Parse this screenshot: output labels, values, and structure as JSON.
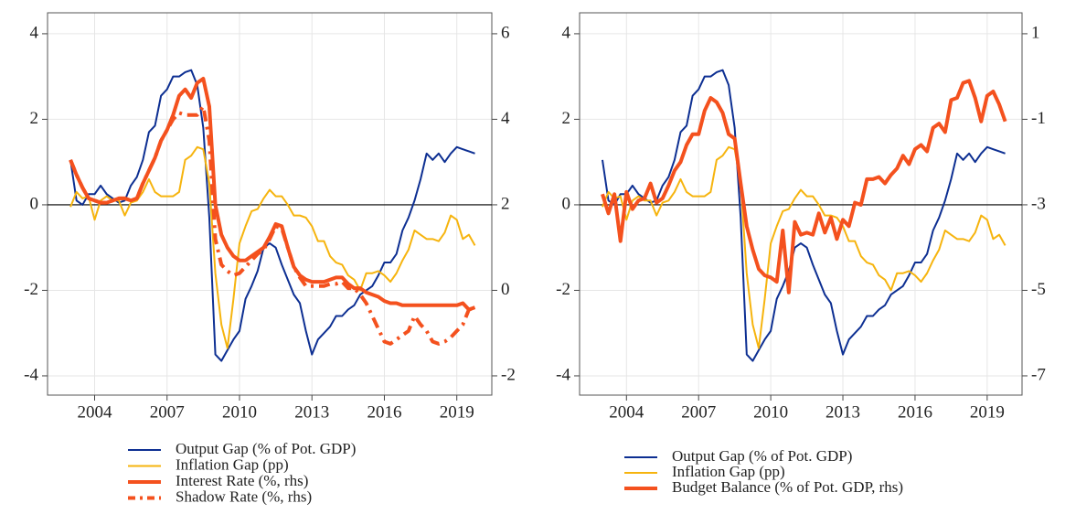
{
  "chart_data": [
    {
      "type": "line",
      "x": [
        2003,
        2003.25,
        2003.5,
        2003.75,
        2004,
        2004.25,
        2004.5,
        2004.75,
        2005,
        2005.25,
        2005.5,
        2005.75,
        2006,
        2006.25,
        2006.5,
        2006.75,
        2007,
        2007.25,
        2007.5,
        2007.75,
        2008,
        2008.25,
        2008.5,
        2008.75,
        2009,
        2009.25,
        2009.5,
        2009.75,
        2010,
        2010.25,
        2010.5,
        2010.75,
        2011,
        2011.25,
        2011.5,
        2011.75,
        2012,
        2012.25,
        2012.5,
        2012.75,
        2013,
        2013.25,
        2013.5,
        2013.75,
        2014,
        2014.25,
        2014.5,
        2014.75,
        2015,
        2015.25,
        2015.5,
        2015.75,
        2016,
        2016.25,
        2016.5,
        2016.75,
        2017,
        2017.25,
        2017.5,
        2017.75,
        2018,
        2018.25,
        2018.5,
        2018.75,
        2019,
        2019.25,
        2019.5,
        2019.75
      ],
      "xlim": [
        2002.05,
        2020.45
      ],
      "xticks": [
        2004,
        2007,
        2010,
        2013,
        2016,
        2019
      ],
      "ylim": [
        -4.45,
        4.49
      ],
      "yticks": [
        -4,
        -2,
        0,
        2,
        4
      ],
      "y2lim": [
        -2.45,
        6.49
      ],
      "y2ticks": [
        -2,
        0,
        2,
        4,
        6
      ],
      "hline": 0,
      "grid": true,
      "series": [
        {
          "name": "Output Gap (% of Pot. GDP)",
          "color": "#0d2f92",
          "line_width": 2,
          "style": "solid",
          "values": [
            1.05,
            0.1,
            0.0,
            0.25,
            0.25,
            0.45,
            0.25,
            0.15,
            0.05,
            0.1,
            0.45,
            0.65,
            1.05,
            1.7,
            1.85,
            2.55,
            2.7,
            3.0,
            3.0,
            3.1,
            3.15,
            2.8,
            1.8,
            -0.3,
            -3.5,
            -3.65,
            -3.4,
            -3.15,
            -2.95,
            -2.2,
            -1.9,
            -1.55,
            -1.0,
            -0.9,
            -1.0,
            -1.4,
            -1.75,
            -2.1,
            -2.3,
            -2.95,
            -3.5,
            -3.15,
            -3.0,
            -2.85,
            -2.6,
            -2.6,
            -2.45,
            -2.35,
            -2.1,
            -2.0,
            -1.9,
            -1.65,
            -1.35,
            -1.35,
            -1.15,
            -0.6,
            -0.3,
            0.1,
            0.6,
            1.2,
            1.05,
            1.2,
            1.0,
            1.2,
            1.35,
            1.3,
            1.25,
            1.2
          ]
        },
        {
          "name": "Inflation Gap (pp)",
          "color": "#f6b40e",
          "line_width": 2,
          "style": "solid",
          "values": [
            -0.05,
            0.3,
            0.15,
            0.2,
            -0.35,
            0.1,
            0.2,
            0.1,
            0.1,
            -0.25,
            0.05,
            0.1,
            0.3,
            0.6,
            0.3,
            0.2,
            0.2,
            0.2,
            0.3,
            1.05,
            1.15,
            1.35,
            1.3,
            0.5,
            -1.6,
            -2.8,
            -3.35,
            -2.2,
            -0.9,
            -0.5,
            -0.15,
            -0.1,
            0.15,
            0.35,
            0.2,
            0.2,
            0.0,
            -0.25,
            -0.25,
            -0.3,
            -0.5,
            -0.85,
            -0.85,
            -1.2,
            -1.35,
            -1.4,
            -1.65,
            -1.75,
            -2.0,
            -1.6,
            -1.6,
            -1.55,
            -1.65,
            -1.8,
            -1.6,
            -1.3,
            -1.05,
            -0.6,
            -0.7,
            -0.8,
            -0.8,
            -0.85,
            -0.65,
            -0.25,
            -0.35,
            -0.8,
            -0.7,
            -0.95
          ]
        },
        {
          "name": "Interest Rate (%, rhs)",
          "color": "#f4511e",
          "line_width": 4,
          "style": "solid",
          "axis": "y2",
          "values": [
            3.05,
            2.7,
            2.4,
            2.15,
            2.1,
            2.05,
            2.05,
            2.1,
            2.15,
            2.15,
            2.1,
            2.15,
            2.5,
            2.8,
            3.1,
            3.5,
            3.75,
            4.1,
            4.55,
            4.7,
            4.5,
            4.85,
            4.95,
            4.3,
            2.0,
            1.3,
            1.0,
            0.8,
            0.7,
            0.7,
            0.8,
            0.9,
            1.0,
            1.25,
            1.55,
            1.5,
            1.0,
            0.55,
            0.35,
            0.25,
            0.2,
            0.2,
            0.2,
            0.25,
            0.3,
            0.3,
            0.15,
            0.05,
            0.05,
            -0.05,
            -0.1,
            -0.15,
            -0.25,
            -0.3,
            -0.3,
            -0.35,
            -0.35,
            -0.35,
            -0.35,
            -0.35,
            -0.35,
            -0.35,
            -0.35,
            -0.35,
            -0.35,
            -0.3,
            -0.45,
            -0.4
          ]
        },
        {
          "name": "Shadow Rate (%, rhs)",
          "color": "#f4511e",
          "line_width": 4,
          "style": "dashdot",
          "axis": "y2",
          "values": [
            3.05,
            2.7,
            2.4,
            2.15,
            2.1,
            2.05,
            2.05,
            2.1,
            2.15,
            2.15,
            2.1,
            2.15,
            2.5,
            2.8,
            3.1,
            3.5,
            3.75,
            4.0,
            4.15,
            4.1,
            4.1,
            4.1,
            4.3,
            3.5,
            1.2,
            0.6,
            0.45,
            0.35,
            0.4,
            0.55,
            0.7,
            0.85,
            0.95,
            1.2,
            1.5,
            1.45,
            1.0,
            0.55,
            0.3,
            0.1,
            0.1,
            0.1,
            0.1,
            0.15,
            0.15,
            0.2,
            0.05,
            0.05,
            -0.1,
            -0.3,
            -0.6,
            -0.9,
            -1.2,
            -1.25,
            -1.15,
            -1.05,
            -0.95,
            -0.6,
            -0.8,
            -0.95,
            -1.2,
            -1.25,
            -1.2,
            -1.1,
            -0.95,
            -0.8,
            -0.45,
            -0.4
          ]
        }
      ]
    },
    {
      "type": "line",
      "x": [
        2003,
        2003.25,
        2003.5,
        2003.75,
        2004,
        2004.25,
        2004.5,
        2004.75,
        2005,
        2005.25,
        2005.5,
        2005.75,
        2006,
        2006.25,
        2006.5,
        2006.75,
        2007,
        2007.25,
        2007.5,
        2007.75,
        2008,
        2008.25,
        2008.5,
        2008.75,
        2009,
        2009.25,
        2009.5,
        2009.75,
        2010,
        2010.25,
        2010.5,
        2010.75,
        2011,
        2011.25,
        2011.5,
        2011.75,
        2012,
        2012.25,
        2012.5,
        2012.75,
        2013,
        2013.25,
        2013.5,
        2013.75,
        2014,
        2014.25,
        2014.5,
        2014.75,
        2015,
        2015.25,
        2015.5,
        2015.75,
        2016,
        2016.25,
        2016.5,
        2016.75,
        2017,
        2017.25,
        2017.5,
        2017.75,
        2018,
        2018.25,
        2018.5,
        2018.75,
        2019,
        2019.25,
        2019.5,
        2019.75
      ],
      "xlim": [
        2002.05,
        2020.45
      ],
      "xticks": [
        2004,
        2007,
        2010,
        2013,
        2016,
        2019
      ],
      "ylim": [
        -4.45,
        4.49
      ],
      "yticks": [
        -4,
        -2,
        0,
        2,
        4
      ],
      "y2lim": [
        -7.45,
        1.49
      ],
      "y2ticks": [
        -7,
        -5,
        -3,
        -1,
        1
      ],
      "hline": 0,
      "grid": true,
      "series": [
        {
          "name": "Output Gap (% of Pot. GDP)",
          "color": "#0d2f92",
          "line_width": 2,
          "style": "solid",
          "values": [
            1.05,
            0.1,
            0.0,
            0.25,
            0.25,
            0.45,
            0.25,
            0.15,
            0.05,
            0.1,
            0.45,
            0.65,
            1.05,
            1.7,
            1.85,
            2.55,
            2.7,
            3.0,
            3.0,
            3.1,
            3.15,
            2.8,
            1.8,
            -0.3,
            -3.5,
            -3.65,
            -3.4,
            -3.15,
            -2.95,
            -2.2,
            -1.9,
            -1.55,
            -1.0,
            -0.9,
            -1.0,
            -1.4,
            -1.75,
            -2.1,
            -2.3,
            -2.95,
            -3.5,
            -3.15,
            -3.0,
            -2.85,
            -2.6,
            -2.6,
            -2.45,
            -2.35,
            -2.1,
            -2.0,
            -1.9,
            -1.65,
            -1.35,
            -1.35,
            -1.15,
            -0.6,
            -0.3,
            0.1,
            0.6,
            1.2,
            1.05,
            1.2,
            1.0,
            1.2,
            1.35,
            1.3,
            1.25,
            1.2
          ]
        },
        {
          "name": "Inflation Gap (pp)",
          "color": "#f6b40e",
          "line_width": 2,
          "style": "solid",
          "values": [
            -0.05,
            0.3,
            0.15,
            0.2,
            -0.35,
            0.1,
            0.2,
            0.1,
            0.1,
            -0.25,
            0.05,
            0.1,
            0.3,
            0.6,
            0.3,
            0.2,
            0.2,
            0.2,
            0.3,
            1.05,
            1.15,
            1.35,
            1.3,
            0.5,
            -1.6,
            -2.8,
            -3.35,
            -2.2,
            -0.9,
            -0.5,
            -0.15,
            -0.1,
            0.15,
            0.35,
            0.2,
            0.2,
            0.0,
            -0.25,
            -0.25,
            -0.3,
            -0.5,
            -0.85,
            -0.85,
            -1.2,
            -1.35,
            -1.4,
            -1.65,
            -1.75,
            -2.0,
            -1.6,
            -1.6,
            -1.55,
            -1.65,
            -1.8,
            -1.6,
            -1.3,
            -1.05,
            -0.6,
            -0.7,
            -0.8,
            -0.8,
            -0.85,
            -0.65,
            -0.25,
            -0.35,
            -0.8,
            -0.7,
            -0.95
          ]
        },
        {
          "name": "Budget Balance (% of Pot. GDP, rhs)",
          "color": "#f4511e",
          "line_width": 4,
          "style": "solid",
          "axis": "y2",
          "values": [
            -2.75,
            -3.2,
            -2.75,
            -3.85,
            -2.7,
            -3.1,
            -2.9,
            -2.85,
            -2.5,
            -2.95,
            -2.85,
            -2.55,
            -2.2,
            -2.0,
            -1.6,
            -1.35,
            -1.35,
            -0.8,
            -0.5,
            -0.6,
            -0.85,
            -1.35,
            -1.45,
            -2.5,
            -3.5,
            -4.05,
            -4.5,
            -4.65,
            -4.7,
            -4.8,
            -3.6,
            -5.05,
            -3.4,
            -3.7,
            -3.65,
            -3.7,
            -3.2,
            -3.65,
            -3.3,
            -3.8,
            -3.35,
            -3.5,
            -2.95,
            -3.0,
            -2.4,
            -2.4,
            -2.35,
            -2.5,
            -2.3,
            -2.15,
            -1.85,
            -2.05,
            -1.7,
            -1.6,
            -1.75,
            -1.2,
            -1.1,
            -1.3,
            -0.55,
            -0.5,
            -0.15,
            -0.1,
            -0.5,
            -1.05,
            -0.45,
            -0.35,
            -0.65,
            -1.05
          ]
        }
      ]
    }
  ]
}
